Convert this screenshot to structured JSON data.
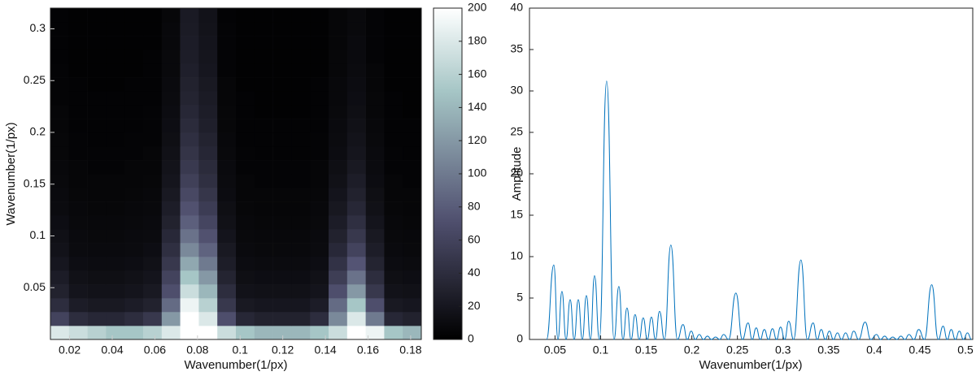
{
  "chart_data": [
    {
      "type": "heatmap",
      "xlabel": "Wavenumber(1/px)",
      "ylabel": "Wavenumber(1/px)",
      "colormap": "bone",
      "clim": [
        0,
        200
      ],
      "cticks": [
        0,
        20,
        40,
        60,
        80,
        100,
        120,
        140,
        160,
        180,
        200
      ],
      "xlim": [
        0.011,
        0.185
      ],
      "ylim": [
        0,
        0.32
      ],
      "xticks": [
        0.02,
        0.04,
        0.06,
        0.08,
        0.1,
        0.12,
        0.14,
        0.16,
        0.18
      ],
      "yticks": [
        0.05,
        0.1,
        0.15,
        0.2,
        0.25,
        0.3
      ],
      "x_edges": [
        0.011,
        0.0197,
        0.0284,
        0.0371,
        0.0458,
        0.0545,
        0.0632,
        0.0719,
        0.0806,
        0.0893,
        0.098,
        0.1067,
        0.1154,
        0.1241,
        0.1328,
        0.1415,
        0.1502,
        0.1589,
        0.1676,
        0.1763,
        0.185
      ],
      "y_edges": [
        0,
        0.0133,
        0.0267,
        0.04,
        0.0533,
        0.0667,
        0.08,
        0.0933,
        0.1067,
        0.12,
        0.1333,
        0.1467,
        0.16,
        0.1733,
        0.1867,
        0.2,
        0.2133,
        0.2267,
        0.24,
        0.2533,
        0.2667,
        0.28,
        0.2933,
        0.3067,
        0.32
      ],
      "z": [
        [
          180,
          170,
          160,
          150,
          150,
          160,
          180,
          200,
          200,
          170,
          150,
          140,
          140,
          140,
          150,
          170,
          200,
          190,
          150,
          140
        ],
        [
          60,
          40,
          35,
          35,
          40,
          50,
          120,
          200,
          180,
          70,
          35,
          30,
          30,
          30,
          40,
          110,
          180,
          100,
          35,
          30
        ],
        [
          40,
          25,
          22,
          22,
          25,
          30,
          90,
          190,
          160,
          50,
          22,
          20,
          20,
          20,
          25,
          90,
          150,
          70,
          22,
          20
        ],
        [
          30,
          18,
          16,
          16,
          18,
          22,
          70,
          170,
          140,
          40,
          16,
          15,
          15,
          15,
          18,
          70,
          120,
          50,
          16,
          15
        ],
        [
          25,
          15,
          13,
          13,
          15,
          18,
          60,
          150,
          120,
          32,
          13,
          12,
          12,
          12,
          15,
          55,
          95,
          40,
          13,
          12
        ],
        [
          20,
          12,
          11,
          11,
          12,
          15,
          50,
          130,
          100,
          26,
          11,
          10,
          10,
          10,
          12,
          45,
          75,
          32,
          11,
          10
        ],
        [
          16,
          10,
          9,
          9,
          10,
          12,
          42,
          110,
          85,
          22,
          9,
          8,
          8,
          8,
          10,
          36,
          60,
          26,
          9,
          8
        ],
        [
          14,
          9,
          8,
          8,
          9,
          10,
          36,
          95,
          72,
          18,
          8,
          7,
          7,
          7,
          9,
          30,
          50,
          22,
          8,
          7
        ],
        [
          12,
          8,
          7,
          7,
          8,
          9,
          30,
          82,
          62,
          15,
          7,
          6,
          6,
          6,
          8,
          25,
          42,
          18,
          7,
          6
        ],
        [
          10,
          7,
          6,
          6,
          7,
          8,
          26,
          72,
          54,
          13,
          6,
          5,
          5,
          5,
          7,
          21,
          35,
          15,
          6,
          5
        ],
        [
          9,
          6,
          5,
          5,
          6,
          7,
          22,
          64,
          48,
          11,
          5,
          5,
          5,
          5,
          6,
          18,
          30,
          13,
          5,
          5
        ],
        [
          8,
          5,
          5,
          5,
          5,
          6,
          19,
          57,
          42,
          10,
          5,
          4,
          4,
          4,
          5,
          15,
          26,
          11,
          5,
          4
        ],
        [
          7,
          5,
          4,
          4,
          5,
          5,
          17,
          51,
          38,
          9,
          4,
          4,
          4,
          4,
          5,
          13,
          22,
          10,
          4,
          4
        ],
        [
          6,
          4,
          4,
          4,
          4,
          5,
          15,
          46,
          34,
          8,
          4,
          3,
          3,
          3,
          4,
          11,
          19,
          9,
          4,
          3
        ],
        [
          6,
          4,
          3,
          3,
          4,
          4,
          13,
          42,
          31,
          7,
          3,
          3,
          3,
          3,
          4,
          10,
          17,
          8,
          3,
          3
        ],
        [
          5,
          3,
          3,
          3,
          3,
          4,
          12,
          38,
          28,
          6,
          3,
          3,
          3,
          3,
          3,
          9,
          15,
          7,
          3,
          3
        ],
        [
          5,
          3,
          3,
          3,
          3,
          4,
          11,
          35,
          26,
          6,
          3,
          2,
          2,
          2,
          3,
          8,
          13,
          6,
          3,
          2
        ],
        [
          4,
          3,
          3,
          3,
          3,
          3,
          10,
          32,
          24,
          5,
          3,
          2,
          2,
          2,
          3,
          7,
          12,
          6,
          3,
          2
        ],
        [
          4,
          3,
          2,
          2,
          3,
          3,
          9,
          30,
          22,
          5,
          2,
          2,
          2,
          2,
          3,
          7,
          11,
          5,
          2,
          2
        ],
        [
          4,
          2,
          2,
          2,
          2,
          3,
          8,
          28,
          20,
          4,
          2,
          2,
          2,
          2,
          2,
          6,
          10,
          5,
          2,
          2
        ],
        [
          3,
          2,
          2,
          2,
          2,
          3,
          8,
          26,
          19,
          4,
          2,
          2,
          2,
          2,
          2,
          6,
          9,
          4,
          2,
          2
        ],
        [
          3,
          2,
          2,
          2,
          2,
          2,
          7,
          25,
          18,
          4,
          2,
          2,
          2,
          2,
          2,
          5,
          9,
          4,
          2,
          2
        ],
        [
          3,
          2,
          2,
          2,
          2,
          2,
          7,
          24,
          17,
          4,
          2,
          2,
          2,
          2,
          2,
          5,
          8,
          4,
          2,
          2
        ],
        [
          3,
          2,
          2,
          2,
          2,
          2,
          6,
          23,
          16,
          3,
          2,
          2,
          2,
          2,
          2,
          5,
          8,
          4,
          2,
          2
        ]
      ]
    },
    {
      "type": "line",
      "xlabel": "Wavenumber(1/px)",
      "ylabel": "Amplitude",
      "color": "#0072bd",
      "xlim": [
        0.022,
        0.508
      ],
      "ylim": [
        0,
        40
      ],
      "xticks": [
        0.05,
        0.1,
        0.15,
        0.2,
        0.25,
        0.3,
        0.35,
        0.4,
        0.45,
        0.5
      ],
      "yticks": [
        0,
        5,
        10,
        15,
        20,
        25,
        30,
        35,
        40
      ],
      "x": [
        0.0407,
        0.0487,
        0.0532,
        0.0576,
        0.0621,
        0.0666,
        0.071,
        0.0755,
        0.0799,
        0.0844,
        0.0888,
        0.0933,
        0.0986,
        0.1066,
        0.1147,
        0.12,
        0.1245,
        0.1289,
        0.1334,
        0.1378,
        0.1423,
        0.1467,
        0.1512,
        0.1557,
        0.1601,
        0.1646,
        0.1699,
        0.177,
        0.1842,
        0.1904,
        0.1949,
        0.1993,
        0.2038,
        0.2082,
        0.2127,
        0.2171,
        0.2216,
        0.226,
        0.2305,
        0.2349,
        0.2403,
        0.2483,
        0.2554,
        0.2617,
        0.2661,
        0.2706,
        0.275,
        0.2795,
        0.284,
        0.2884,
        0.2929,
        0.2973,
        0.3018,
        0.3062,
        0.3116,
        0.3196,
        0.3267,
        0.333,
        0.3374,
        0.3419,
        0.3463,
        0.3508,
        0.3552,
        0.3597,
        0.3641,
        0.3686,
        0.3731,
        0.3775,
        0.3829,
        0.39,
        0.3962,
        0.4025,
        0.4069,
        0.4114,
        0.4158,
        0.4203,
        0.4247,
        0.4292,
        0.4336,
        0.4381,
        0.4434,
        0.4488,
        0.455,
        0.463,
        0.4702,
        0.4755,
        0.48,
        0.4844,
        0.4889,
        0.4933,
        0.4978,
        0.5022,
        0.5067
      ],
      "values": [
        0,
        9.0,
        0,
        5.8,
        0,
        4.8,
        0,
        4.8,
        0,
        5.3,
        0,
        7.7,
        0,
        31.2,
        0,
        6.4,
        0,
        3.8,
        0,
        3.0,
        0,
        2.6,
        0,
        2.7,
        0,
        3.4,
        0,
        11.4,
        0,
        1.8,
        0,
        1.0,
        0,
        0.6,
        0,
        0.4,
        0,
        0.3,
        0,
        0.6,
        0,
        5.6,
        0,
        2.0,
        0,
        1.4,
        0,
        1.2,
        0,
        1.3,
        0,
        1.5,
        0,
        2.2,
        0,
        9.6,
        0,
        2.0,
        0,
        1.2,
        0,
        1.0,
        0,
        0.8,
        0,
        0.8,
        0,
        1.0,
        0,
        2.1,
        0,
        0.6,
        0,
        0.4,
        0,
        0.3,
        0,
        0.4,
        0,
        0.6,
        0,
        1.2,
        0,
        6.6,
        0,
        1.6,
        0,
        1.2,
        0,
        1.0,
        0,
        0.8,
        0
      ]
    }
  ]
}
